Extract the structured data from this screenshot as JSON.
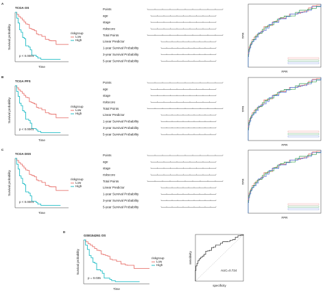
{
  "panels": [
    {
      "letter": "A",
      "km": {
        "title": "TCGA OS",
        "ylabel": "Survival probability",
        "xlabel": "Time",
        "pvalue": "p < 0.0001",
        "legend_title": "riskgroup",
        "legend": [
          "Low",
          "High"
        ]
      },
      "nomogram": {
        "rows": [
          "Points",
          "age",
          "stage",
          "riskscore",
          "Total Points",
          "Linear Predictor",
          "1-year Survival Probability",
          "3-year Survival Probability",
          "5-year Survival Probability"
        ]
      },
      "roc": {
        "xlabel": "FPR",
        "ylabel": "TPR"
      }
    },
    {
      "letter": "B",
      "km": {
        "title": "TCGA PFS",
        "ylabel": "Survival probability",
        "xlabel": "Time",
        "pvalue": "p < 0.0001",
        "legend_title": "riskgroup",
        "legend": [
          "Low",
          "High"
        ]
      },
      "nomogram": {
        "rows": [
          "Points",
          "age",
          "stage",
          "riskscore",
          "Total Points",
          "Linear Predictor",
          "1-year Survival Probability",
          "3-year Survival Probability",
          "5-year Survival Probability"
        ]
      },
      "roc": {
        "xlabel": "FPR",
        "ylabel": "TPR"
      }
    },
    {
      "letter": "C",
      "km": {
        "title": "TCGA DSS",
        "ylabel": "Survival probability",
        "xlabel": "Time",
        "pvalue": "p < 0.0001",
        "legend_title": "riskgroup",
        "legend": [
          "Low",
          "High"
        ]
      },
      "nomogram": {
        "rows": [
          "Points",
          "age",
          "stage",
          "riskscore",
          "Total Points",
          "Linear Predictor",
          "1-year Survival Probability",
          "3-year Survival Probability",
          "5-year Survival Probability"
        ]
      },
      "roc": {
        "xlabel": "FPR",
        "ylabel": "TPR"
      }
    }
  ],
  "panel_d": {
    "letter": "D",
    "km": {
      "title": "GSE154261 OS",
      "ylabel": "Survival probability",
      "xlabel": "Time",
      "pvalue": "p = 0.035",
      "legend_title": "riskgroup",
      "legend": [
        "Low",
        "High"
      ]
    },
    "roc": {
      "xlabel": "specificity",
      "ylabel": "sensitivity",
      "auc": "AUC=0.724"
    }
  }
}
